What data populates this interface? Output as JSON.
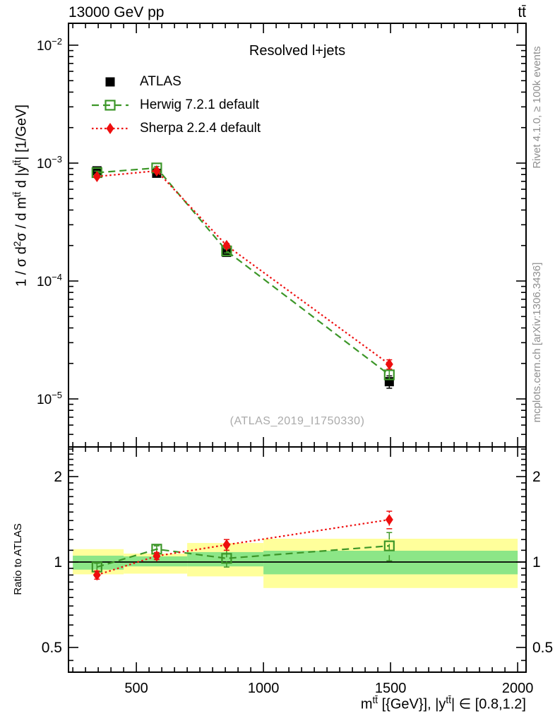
{
  "header": {
    "left_title": "13000 GeV pp",
    "right_title": "tt̄"
  },
  "titles": {
    "plot_title": "Resolved l+jets",
    "watermark": "(ATLAS_2019_I1750330)",
    "rivet_label": "Rivet 4.1.0, ≥ 100k events",
    "mcplots_label": "mcplots.cern.ch [arXiv:1306.3436]",
    "ratio_ylabel": "Ratio to ATLAS"
  },
  "ylabel_segments": [
    {
      "t": "1 / σ d"
    },
    {
      "t": "2",
      "sup": true
    },
    {
      "t": "σ / d m"
    },
    {
      "t": "tt̄",
      "sup": true
    },
    {
      "t": " d |y"
    },
    {
      "t": "tt̄",
      "sup": true
    },
    {
      "t": "| [1/GeV]"
    }
  ],
  "xlabel_segments": [
    {
      "t": "m"
    },
    {
      "t": "tt̄",
      "sup": true
    },
    {
      "t": " [{GeV}], |y"
    },
    {
      "t": "tt̄",
      "sup": true
    },
    {
      "t": "| ∈ [0.8,1.2]"
    }
  ],
  "legend": [
    {
      "label": "ATLAS",
      "marker": "filled-square",
      "color": "#000000",
      "line": "none"
    },
    {
      "label": "Herwig 7.2.1 default",
      "marker": "open-square",
      "color": "#3c9628",
      "line": "dashed"
    },
    {
      "label": "Sherpa 2.2.4 default",
      "marker": "filled-diamond",
      "color": "#ee0e0e",
      "line": "dotted"
    }
  ],
  "colors": {
    "herwig_green": "#3c9628",
    "sherpa_red": "#ee0e0e",
    "band_yellow": "#ffff9b",
    "band_green": "#8ce687",
    "frame": "#000000",
    "gray_text": "#8f8f8f"
  },
  "chart_data": [
    {
      "type": "scatter",
      "panel": "main",
      "title": "Resolved l+jets",
      "xlabel": "m^tt [{GeV}], |y^tt| in [0.8,1.2]",
      "ylabel": "1 / sigma d2sigma / d m^tt d |y^tt| [1/GeV]",
      "x_scale": "linear",
      "y_scale": "log",
      "xlim": [
        233,
        2033
      ],
      "ylim": [
        3.9e-06,
        0.0153
      ],
      "xticks_major": [
        500,
        1000,
        1500,
        2000
      ],
      "xtick_minor_step": 50,
      "ytick_decades": [
        -2,
        -3,
        -4,
        -5
      ],
      "x_gev": [
        345,
        580,
        855,
        1495
      ],
      "bin_edges_gev": [
        250,
        450,
        700,
        1000,
        2000
      ],
      "series": [
        {
          "name": "ATLAS",
          "color": "#000000",
          "marker": "filled-square",
          "line": "none",
          "values": [
            0.00086,
            0.00082,
            0.000175,
            1.4e-05
          ],
          "err_frac": [
            0.05,
            0.05,
            0.07,
            0.12
          ]
        },
        {
          "name": "Herwig 7.2.1 default",
          "color": "#3c9628",
          "marker": "open-square",
          "line": "dashed",
          "values": [
            0.00083,
            0.00091,
            0.00018,
            1.6e-05
          ],
          "err_frac": [
            0.03,
            0.03,
            0.04,
            0.09
          ]
        },
        {
          "name": "Sherpa 2.2.4 default",
          "color": "#ee0e0e",
          "marker": "filled-diamond",
          "line": "dotted",
          "values": [
            0.00077,
            0.00086,
            0.0002,
            1.97e-05
          ],
          "err_frac": [
            0.03,
            0.03,
            0.04,
            0.09
          ]
        }
      ]
    },
    {
      "type": "ratio",
      "panel": "ratio",
      "ylabel": "Ratio to ATLAS",
      "y_scale": "log",
      "ylim": [
        0.41,
        2.54
      ],
      "yticks": [
        2,
        1,
        0.5
      ],
      "baseline": 1,
      "bands": [
        {
          "bin": [
            250,
            450
          ],
          "yellow": [
            0.905,
            1.11
          ],
          "green": [
            0.94,
            1.053
          ]
        },
        {
          "bin": [
            450,
            700
          ],
          "yellow": [
            0.91,
            1.071
          ],
          "green": [
            0.965,
            1.047
          ]
        },
        {
          "bin": [
            700,
            1000
          ],
          "yellow": [
            0.89,
            1.167
          ],
          "green": [
            0.965,
            1.084
          ]
        },
        {
          "bin": [
            1000,
            2000
          ],
          "yellow": [
            0.81,
            1.208
          ],
          "green": [
            0.905,
            1.096
          ]
        }
      ],
      "series": [
        {
          "name": "Herwig 7.2.1 default",
          "values": [
            0.96,
            1.11,
            1.03,
            1.14
          ],
          "err": [
            0.03,
            0.03,
            0.07,
            0.13
          ]
        },
        {
          "name": "Sherpa 2.2.4 default",
          "values": [
            0.9,
            1.05,
            1.15,
            1.41
          ],
          "err": [
            0.03,
            0.03,
            0.05,
            0.1
          ]
        }
      ]
    }
  ]
}
